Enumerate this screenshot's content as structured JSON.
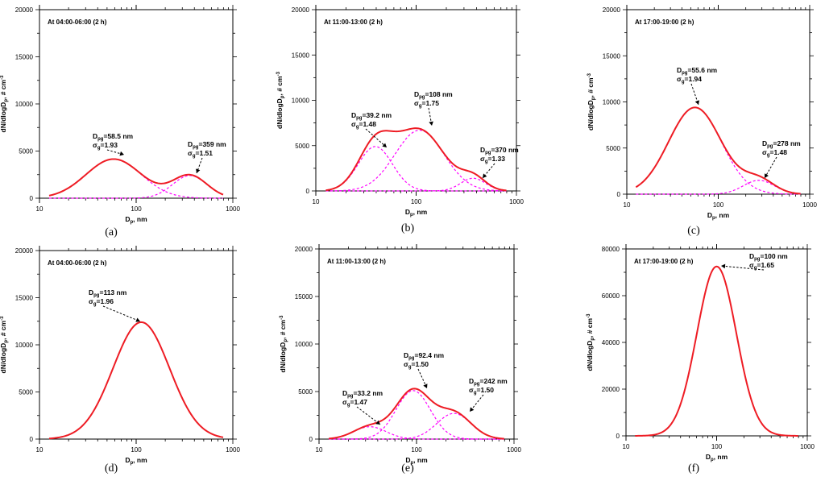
{
  "x_title_main": "D",
  "x_title_sub": "p",
  "x_title_rest": ", nm",
  "y_title": "dN/dlogD",
  "y_title_sub": "p",
  "y_title_rest": ", # cm",
  "y_title_sup": "-3",
  "x_ticks": [
    "10",
    "100",
    "1000"
  ],
  "colors": {
    "total": "#ee1c24",
    "mode": "#ff00ff",
    "axis": "#000000"
  },
  "panels": [
    {
      "label": "(a)",
      "time": "At 04:00-06:00 (2 h)",
      "chart_data": {
        "type": "line",
        "x_scale": "log",
        "xlim": [
          10,
          1000
        ],
        "ylim": [
          0,
          20000
        ],
        "y_ticks": [
          "0",
          "5000",
          "10000",
          "15000",
          "20000"
        ],
        "modes": [
          {
            "dpg": 58.5,
            "sigma": 1.93,
            "peak": 4150,
            "label": "=58.5 nm",
            "sigma_label": "=1.93"
          },
          {
            "dpg": 359,
            "sigma": 1.51,
            "peak": 2400,
            "label": "=359 nm",
            "sigma_label": "=1.51"
          }
        ]
      }
    },
    {
      "label": "(b)",
      "time": "At 11:00-13:00 (2 h)",
      "chart_data": {
        "type": "line",
        "x_scale": "log",
        "xlim": [
          10,
          1000
        ],
        "ylim": [
          0,
          20000
        ],
        "y_ticks": [
          "0",
          "5000",
          "10000",
          "15000",
          "20000"
        ],
        "modes": [
          {
            "dpg": 39.2,
            "sigma": 1.48,
            "peak": 4900,
            "label": "=39.2 nm",
            "sigma_label": "=1.48"
          },
          {
            "dpg": 108,
            "sigma": 1.75,
            "peak": 6700,
            "label": "=108 nm",
            "sigma_label": "=1.75"
          },
          {
            "dpg": 370,
            "sigma": 1.33,
            "peak": 1400,
            "label": "=370 nm",
            "sigma_label": "=1.33"
          }
        ]
      }
    },
    {
      "label": "(c)",
      "time": "At 17:00-19:00 (2 h)",
      "chart_data": {
        "type": "line",
        "x_scale": "log",
        "xlim": [
          10,
          1000
        ],
        "ylim": [
          0,
          20000
        ],
        "y_ticks": [
          "0",
          "5000",
          "10000",
          "15000",
          "20000"
        ],
        "modes": [
          {
            "dpg": 55.6,
            "sigma": 1.94,
            "peak": 9400,
            "label": "=55.6 nm",
            "sigma_label": "=1.94"
          },
          {
            "dpg": 278,
            "sigma": 1.48,
            "peak": 1500,
            "label": "=278 nm",
            "sigma_label": "=1.48"
          }
        ]
      }
    },
    {
      "label": "(d)",
      "time": "At 04:00-06:00 (2 h)",
      "chart_data": {
        "type": "line",
        "x_scale": "log",
        "xlim": [
          10,
          1000
        ],
        "ylim": [
          0,
          20000
        ],
        "y_ticks": [
          "0",
          "5000",
          "10000",
          "15000",
          "20000"
        ],
        "modes": [
          {
            "dpg": 113,
            "sigma": 1.96,
            "peak": 12400,
            "label": "=113 nm",
            "sigma_label": "=1.96"
          }
        ]
      }
    },
    {
      "label": "(e)",
      "time": "At 11:00-13:00 (2 h)",
      "chart_data": {
        "type": "line",
        "x_scale": "log",
        "xlim": [
          10,
          1000
        ],
        "ylim": [
          0,
          20000
        ],
        "y_ticks": [
          "0",
          "5000",
          "10000",
          "15000",
          "20000"
        ],
        "modes": [
          {
            "dpg": 33.2,
            "sigma": 1.47,
            "peak": 1300,
            "label": "=33.2 nm",
            "sigma_label": "=1.47"
          },
          {
            "dpg": 92.4,
            "sigma": 1.5,
            "peak": 5100,
            "label": "=92.4 nm",
            "sigma_label": "=1.50"
          },
          {
            "dpg": 242,
            "sigma": 1.5,
            "peak": 2700,
            "label": "=242 nm",
            "sigma_label": "=1.50"
          }
        ]
      }
    },
    {
      "label": "(f)",
      "time": "At 17:00-19:00 (2 h)",
      "chart_data": {
        "type": "line",
        "x_scale": "log",
        "xlim": [
          10,
          1000
        ],
        "ylim": [
          0,
          80000
        ],
        "y_ticks": [
          "0",
          "20000",
          "40000",
          "60000",
          "80000"
        ],
        "modes": [
          {
            "dpg": 100,
            "sigma": 1.65,
            "peak": 72500,
            "label": "=100 nm",
            "sigma_label": "=1.65"
          }
        ]
      }
    }
  ]
}
